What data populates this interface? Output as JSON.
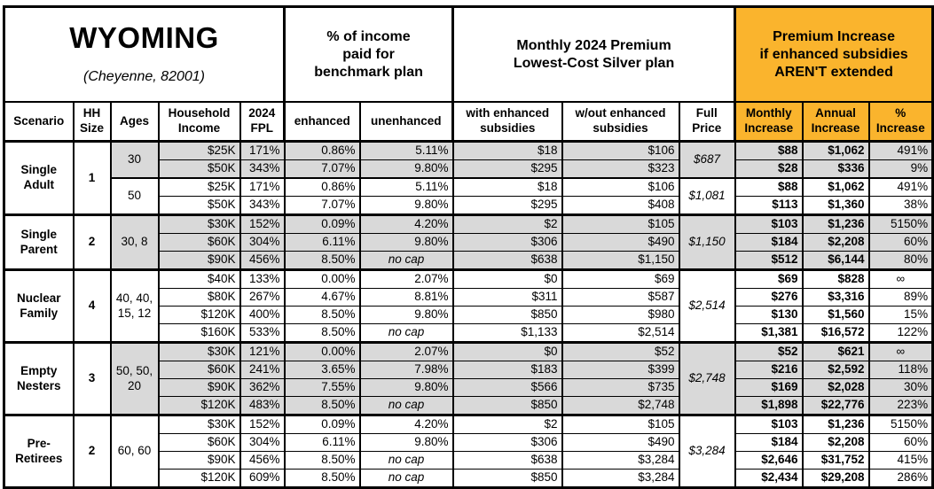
{
  "table": {
    "title": "WYOMING",
    "subtitle": "(Cheyenne, 82001)",
    "sections": {
      "benchmark": "% of income\npaid for\nbenchmark plan",
      "premium": "Monthly 2024 Premium\nLowest-Cost Silver plan",
      "increase": "Premium Increase\nif enhanced subsidies\nAREN'T extended"
    },
    "headers": {
      "scenario": "Scenario",
      "hh": "HH\nSize",
      "ages": "Ages",
      "income": "Household\nIncome",
      "fpl": "2024\nFPL",
      "enhanced": "enhanced",
      "unenhanced": "unenhanced",
      "with_sub": "with enhanced\nsubsidies",
      "wout_sub": "w/out enhanced\nsubsidies",
      "full": "Full\nPrice",
      "monthly": "Monthly\nIncrease",
      "annual": "Annual\nIncrease",
      "pct": "%\nIncrease"
    },
    "colors": {
      "accent_orange": "#FAB42D",
      "shade_gray": "#D9D9D9",
      "border_black": "#000000"
    },
    "groups": [
      {
        "scenario": "Single\nAdult",
        "hh": "1",
        "subgroups": [
          {
            "ages": "30",
            "full": "$687",
            "shaded": true,
            "rows": [
              {
                "income": "$25K",
                "fpl": "171%",
                "enh": "0.86%",
                "unenh": "5.11%",
                "withs": "$18",
                "wout": "$106",
                "mon": "$88",
                "ann": "$1,062",
                "pct": "491%"
              },
              {
                "income": "$50K",
                "fpl": "343%",
                "enh": "7.07%",
                "unenh": "9.80%",
                "withs": "$295",
                "wout": "$323",
                "mon": "$28",
                "ann": "$336",
                "pct": "9%"
              }
            ]
          },
          {
            "ages": "50",
            "full": "$1,081",
            "shaded": false,
            "rows": [
              {
                "income": "$25K",
                "fpl": "171%",
                "enh": "0.86%",
                "unenh": "5.11%",
                "withs": "$18",
                "wout": "$106",
                "mon": "$88",
                "ann": "$1,062",
                "pct": "491%"
              },
              {
                "income": "$50K",
                "fpl": "343%",
                "enh": "7.07%",
                "unenh": "9.80%",
                "withs": "$295",
                "wout": "$408",
                "mon": "$113",
                "ann": "$1,360",
                "pct": "38%"
              }
            ]
          }
        ]
      },
      {
        "scenario": "Single\nParent",
        "hh": "2",
        "subgroups": [
          {
            "ages": "30, 8",
            "full": "$1,150",
            "shaded": true,
            "rows": [
              {
                "income": "$30K",
                "fpl": "152%",
                "enh": "0.09%",
                "unenh": "4.20%",
                "withs": "$2",
                "wout": "$105",
                "mon": "$103",
                "ann": "$1,236",
                "pct": "5150%"
              },
              {
                "income": "$60K",
                "fpl": "304%",
                "enh": "6.11%",
                "unenh": "9.80%",
                "withs": "$306",
                "wout": "$490",
                "mon": "$184",
                "ann": "$2,208",
                "pct": "60%"
              },
              {
                "income": "$90K",
                "fpl": "456%",
                "enh": "8.50%",
                "unenh": "no cap",
                "withs": "$638",
                "wout": "$1,150",
                "mon": "$512",
                "ann": "$6,144",
                "pct": "80%"
              }
            ]
          }
        ]
      },
      {
        "scenario": "Nuclear\nFamily",
        "hh": "4",
        "subgroups": [
          {
            "ages": "40, 40,\n15, 12",
            "full": "$2,514",
            "shaded": false,
            "rows": [
              {
                "income": "$40K",
                "fpl": "133%",
                "enh": "0.00%",
                "unenh": "2.07%",
                "withs": "$0",
                "wout": "$69",
                "mon": "$69",
                "ann": "$828",
                "pct": "∞"
              },
              {
                "income": "$80K",
                "fpl": "267%",
                "enh": "4.67%",
                "unenh": "8.81%",
                "withs": "$311",
                "wout": "$587",
                "mon": "$276",
                "ann": "$3,316",
                "pct": "89%"
              },
              {
                "income": "$120K",
                "fpl": "400%",
                "enh": "8.50%",
                "unenh": "9.80%",
                "withs": "$850",
                "wout": "$980",
                "mon": "$130",
                "ann": "$1,560",
                "pct": "15%"
              },
              {
                "income": "$160K",
                "fpl": "533%",
                "enh": "8.50%",
                "unenh": "no cap",
                "withs": "$1,133",
                "wout": "$2,514",
                "mon": "$1,381",
                "ann": "$16,572",
                "pct": "122%"
              }
            ]
          }
        ]
      },
      {
        "scenario": "Empty\nNesters",
        "hh": "3",
        "subgroups": [
          {
            "ages": "50, 50,\n20",
            "full": "$2,748",
            "shaded": true,
            "rows": [
              {
                "income": "$30K",
                "fpl": "121%",
                "enh": "0.00%",
                "unenh": "2.07%",
                "withs": "$0",
                "wout": "$52",
                "mon": "$52",
                "ann": "$621",
                "pct": "∞"
              },
              {
                "income": "$60K",
                "fpl": "241%",
                "enh": "3.65%",
                "unenh": "7.98%",
                "withs": "$183",
                "wout": "$399",
                "mon": "$216",
                "ann": "$2,592",
                "pct": "118%"
              },
              {
                "income": "$90K",
                "fpl": "362%",
                "enh": "7.55%",
                "unenh": "9.80%",
                "withs": "$566",
                "wout": "$735",
                "mon": "$169",
                "ann": "$2,028",
                "pct": "30%"
              },
              {
                "income": "$120K",
                "fpl": "483%",
                "enh": "8.50%",
                "unenh": "no cap",
                "withs": "$850",
                "wout": "$2,748",
                "mon": "$1,898",
                "ann": "$22,776",
                "pct": "223%"
              }
            ]
          }
        ]
      },
      {
        "scenario": "Pre-\nRetirees",
        "hh": "2",
        "subgroups": [
          {
            "ages": "60, 60",
            "full": "$3,284",
            "shaded": false,
            "rows": [
              {
                "income": "$30K",
                "fpl": "152%",
                "enh": "0.09%",
                "unenh": "4.20%",
                "withs": "$2",
                "wout": "$105",
                "mon": "$103",
                "ann": "$1,236",
                "pct": "5150%"
              },
              {
                "income": "$60K",
                "fpl": "304%",
                "enh": "6.11%",
                "unenh": "9.80%",
                "withs": "$306",
                "wout": "$490",
                "mon": "$184",
                "ann": "$2,208",
                "pct": "60%"
              },
              {
                "income": "$90K",
                "fpl": "456%",
                "enh": "8.50%",
                "unenh": "no cap",
                "withs": "$638",
                "wout": "$3,284",
                "mon": "$2,646",
                "ann": "$31,752",
                "pct": "415%"
              },
              {
                "income": "$120K",
                "fpl": "609%",
                "enh": "8.50%",
                "unenh": "no cap",
                "withs": "$850",
                "wout": "$3,284",
                "mon": "$2,434",
                "ann": "$29,208",
                "pct": "286%"
              }
            ]
          }
        ]
      }
    ]
  }
}
